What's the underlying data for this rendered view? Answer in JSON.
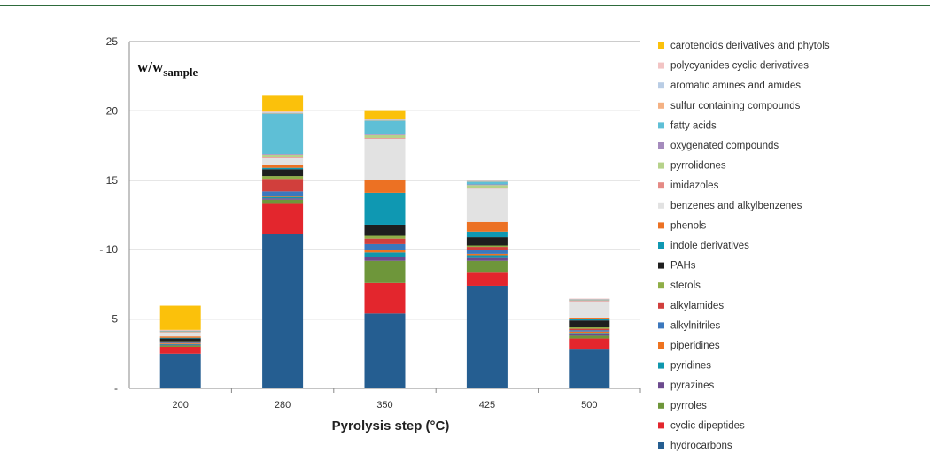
{
  "chart_data": {
    "type": "bar",
    "stacked": true,
    "y_annotation": {
      "main": "w/w",
      "sub": "sample"
    },
    "xlabel": "Pyrolysis step (°C)",
    "ylabel": "",
    "ylim": [
      0,
      25
    ],
    "yticks": [
      0,
      5,
      10,
      15,
      20,
      25
    ],
    "ytick_labels": [
      "-",
      "5",
      "- 10",
      "15",
      "20",
      "25"
    ],
    "grid": true,
    "legend_position": "right",
    "categories": [
      "200",
      "280",
      "350",
      "425",
      "500"
    ],
    "series": [
      {
        "name": "hydrocarbons",
        "color": "#255e91",
        "values": [
          2.5,
          11.1,
          5.4,
          7.4,
          2.8
        ]
      },
      {
        "name": "cyclic dipeptides",
        "color": "#e3262d",
        "values": [
          0.5,
          2.2,
          2.2,
          1.0,
          0.8
        ]
      },
      {
        "name": "pyrroles",
        "color": "#6e963a",
        "values": [
          0.1,
          0.3,
          1.6,
          0.8,
          0.2
        ]
      },
      {
        "name": "pyrazines",
        "color": "#6c4a8e",
        "values": [
          0.05,
          0.1,
          0.3,
          0.2,
          0.1
        ]
      },
      {
        "name": "pyridines",
        "color": "#0f97ad",
        "values": [
          0.05,
          0.1,
          0.3,
          0.2,
          0.1
        ]
      },
      {
        "name": "piperidines",
        "color": "#ee7320",
        "values": [
          0.05,
          0.1,
          0.2,
          0.1,
          0.1
        ]
      },
      {
        "name": "alkylnitriles",
        "color": "#3b78bd",
        "values": [
          0.05,
          0.3,
          0.4,
          0.3,
          0.1
        ]
      },
      {
        "name": "alkylamides",
        "color": "#d13f3c",
        "values": [
          0.05,
          0.9,
          0.4,
          0.2,
          0.1
        ]
      },
      {
        "name": "sterols",
        "color": "#8fae47",
        "values": [
          0.05,
          0.2,
          0.2,
          0.1,
          0.1
        ]
      },
      {
        "name": "PAHs",
        "color": "#1e1e1e",
        "values": [
          0.2,
          0.5,
          0.8,
          0.6,
          0.5
        ]
      },
      {
        "name": "indole derivatives",
        "color": "#0f98b2",
        "values": [
          0.05,
          0.1,
          2.3,
          0.4,
          0.1
        ]
      },
      {
        "name": "phenols",
        "color": "#ec7123",
        "values": [
          0.1,
          0.2,
          0.9,
          0.7,
          0.1
        ]
      },
      {
        "name": "benzenes and alkylbenzenes",
        "color": "#e2e2e2",
        "values": [
          0.3,
          0.5,
          3.0,
          2.4,
          1.2
        ]
      },
      {
        "name": "imidazoles",
        "color": "#e58a85",
        "values": [
          0.02,
          0.05,
          0.05,
          0.05,
          0.02
        ]
      },
      {
        "name": "pyrrolidones",
        "color": "#b6d28a",
        "values": [
          0.05,
          0.2,
          0.2,
          0.2,
          0.05
        ]
      },
      {
        "name": "oxygenated  compounds",
        "color": "#a58bbd",
        "values": [
          0.02,
          0.05,
          0.05,
          0.05,
          0.02
        ]
      },
      {
        "name": "fatty acids",
        "color": "#5ebfd6",
        "values": [
          0.02,
          2.9,
          1.0,
          0.2,
          0.02
        ]
      },
      {
        "name": "sulfur containing compounds",
        "color": "#f4b183",
        "values": [
          0.02,
          0.05,
          0.05,
          0.05,
          0.02
        ]
      },
      {
        "name": "aromatic amines and amides",
        "color": "#b9cde5",
        "values": [
          0.02,
          0.05,
          0.05,
          0.05,
          0.02
        ]
      },
      {
        "name": "polycyanides cyclic derivatives",
        "color": "#f2c4c4",
        "values": [
          0.02,
          0.05,
          0.05,
          0.05,
          0.02
        ]
      },
      {
        "name": "carotenoids derivatives and phytols",
        "color": "#fbc10b",
        "values": [
          1.74,
          1.2,
          0.6,
          0.0,
          0.0
        ]
      }
    ]
  }
}
